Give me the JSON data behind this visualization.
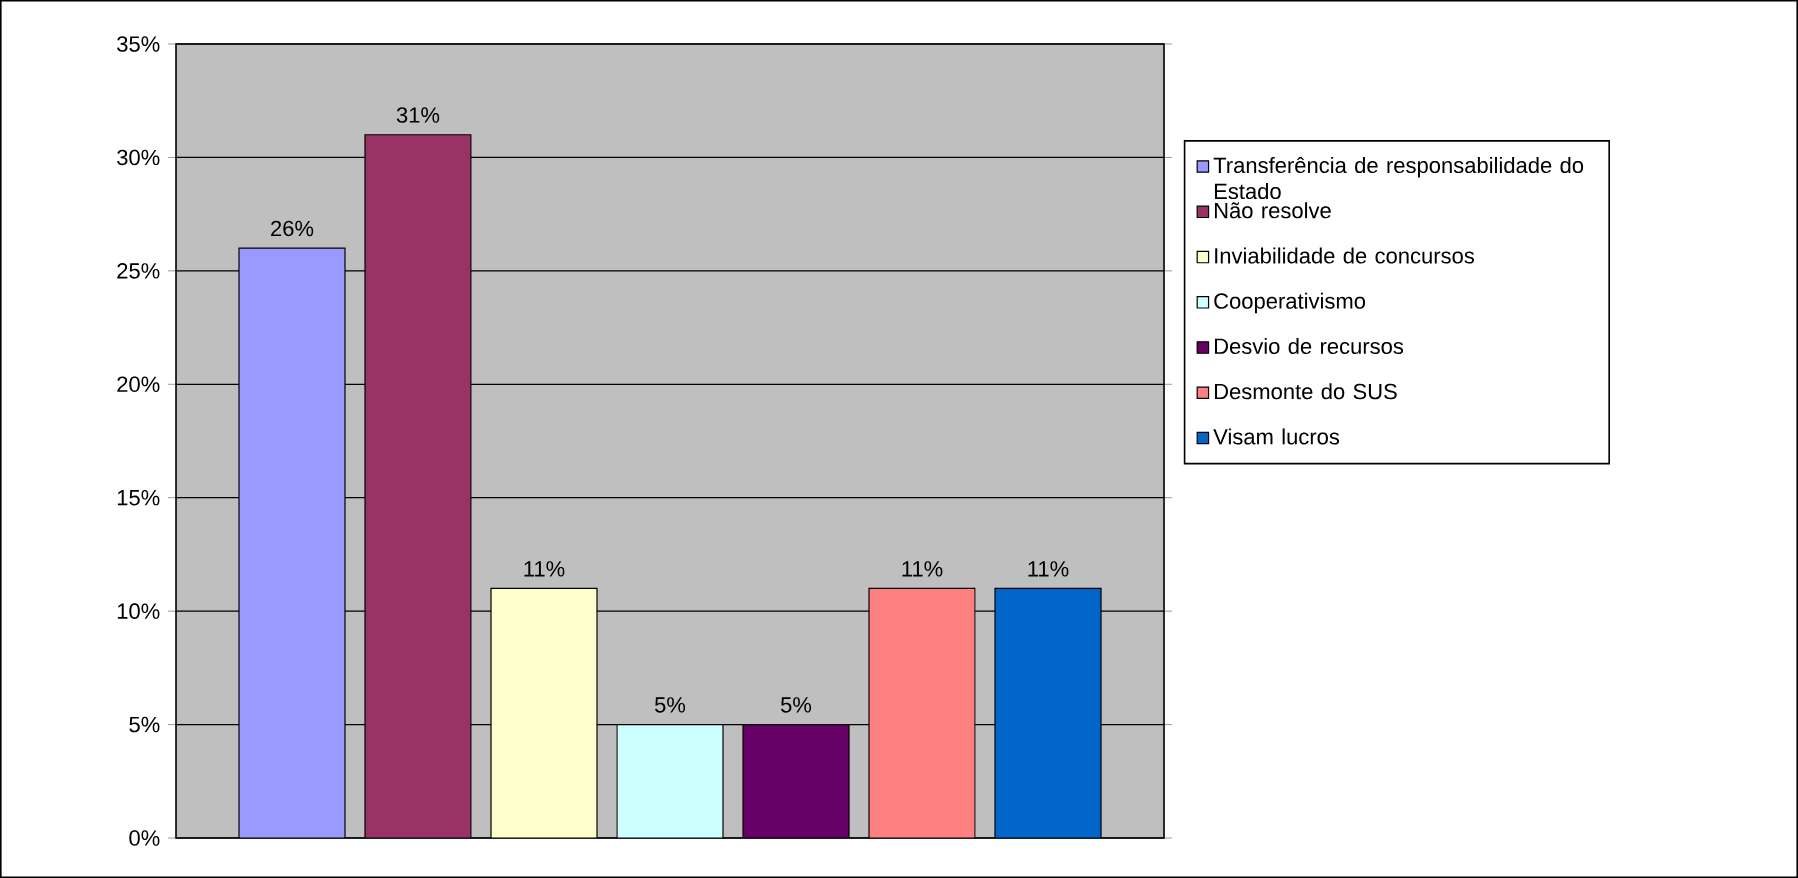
{
  "chart_data": {
    "type": "bar",
    "categories": [
      null
    ],
    "series": [
      {
        "name": "Transferência de responsabilidade do Estado",
        "color": "#9999ff",
        "values": [
          26
        ],
        "value_labels": [
          "26%"
        ]
      },
      {
        "name": "Não resolve",
        "color": "#993366",
        "values": [
          31
        ],
        "value_labels": [
          "31%"
        ]
      },
      {
        "name": "Inviabilidade de concursos",
        "color": "#ffffcc",
        "values": [
          11
        ],
        "value_labels": [
          "11%"
        ]
      },
      {
        "name": "Cooperativismo",
        "color": "#ccffff",
        "values": [
          5
        ],
        "value_labels": [
          "5%"
        ]
      },
      {
        "name": "Desvio de recursos",
        "color": "#660066",
        "values": [
          5
        ],
        "value_labels": [
          "5%"
        ]
      },
      {
        "name": "Desmonte do SUS",
        "color": "#ff8080",
        "values": [
          11
        ],
        "value_labels": [
          "11%"
        ]
      },
      {
        "name": "Visam lucros",
        "color": "#0066cc",
        "values": [
          11
        ],
        "value_labels": [
          "11%"
        ]
      }
    ],
    "ylim": [
      0,
      35
    ],
    "yticks": [
      {
        "value": 0,
        "label": "0%"
      },
      {
        "value": 5,
        "label": "5%"
      },
      {
        "value": 10,
        "label": "10%"
      },
      {
        "value": 15,
        "label": "15%"
      },
      {
        "value": 20,
        "label": "20%"
      },
      {
        "value": 25,
        "label": "25%"
      },
      {
        "value": 30,
        "label": "30%"
      },
      {
        "value": 35,
        "label": "35%"
      }
    ],
    "grid": "y",
    "legend": "right"
  }
}
